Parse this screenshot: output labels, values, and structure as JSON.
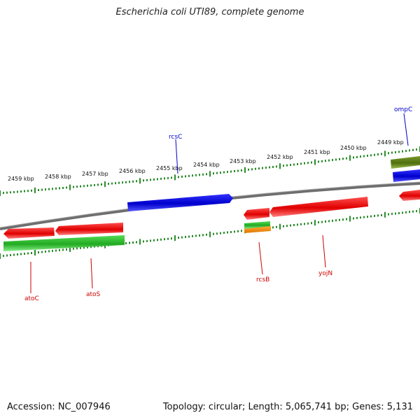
{
  "title": "Escherichia coli UTI89, complete genome",
  "accession": "Accession: NC_007946",
  "summary": "Topology: circular; Length: 5,065,741 bp; Genes: 5,131",
  "ruler": {
    "labels": [
      "2459 kbp",
      "2458 kbp",
      "2457 kbp",
      "2456 kbp",
      "2455 kbp",
      "2454 kbp",
      "2453 kbp",
      "2452 kbp",
      "2451 kbp",
      "2450 kbp",
      "2449 kbp"
    ]
  },
  "genes": {
    "atoC": "atoC",
    "atoS": "atoS",
    "rcsC": "rcsC",
    "rcsB": "rcsB",
    "yojN": "yojN",
    "ompC": "ompC"
  },
  "colors": {
    "forward": "#e00000",
    "reverse_green": "#22bb22",
    "blue": "#0000dd",
    "olive": "#5a7a1a",
    "orange": "#ee8800",
    "backbone": "#777777",
    "ticks": "#2a8a2a",
    "label_red": "#cc0000",
    "label_blue": "#0000cc"
  }
}
